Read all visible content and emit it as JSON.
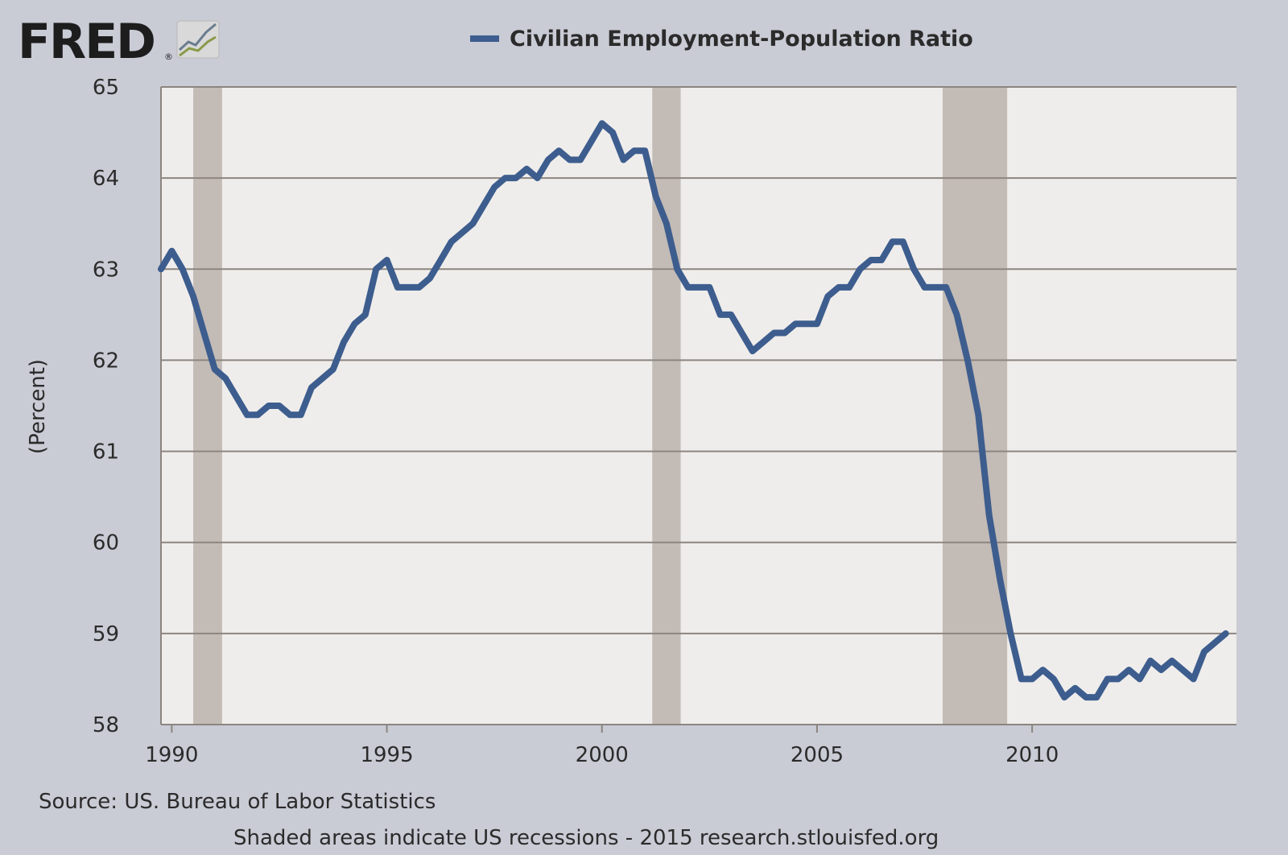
{
  "logo": {
    "text": "FRED",
    "registered": "®"
  },
  "colors": {
    "background": "#c9cbd5",
    "plot_background": "#efedeb",
    "recession_shade": "#c3bbb6",
    "series_line": "#3d5d8e",
    "gridline": "#8c8580"
  },
  "chart_data": {
    "type": "line",
    "title": "",
    "xlabel": "",
    "ylabel": "(Percent)",
    "xlim": [
      1989.75,
      2014.75
    ],
    "ylim": [
      58,
      65
    ],
    "y_ticks": [
      58,
      59,
      60,
      61,
      62,
      63,
      64,
      65
    ],
    "x_ticks": [
      1990,
      1995,
      2000,
      2005,
      2010
    ],
    "grid": true,
    "legend_position": "top-center",
    "recession_shading": [
      [
        1990.5,
        1991.17
      ],
      [
        2001.17,
        2001.83
      ],
      [
        2007.92,
        2009.42
      ]
    ],
    "series": [
      {
        "name": "Civilian Employment-Population Ratio",
        "x": [
          1989.75,
          1990.0,
          1990.25,
          1990.5,
          1990.75,
          1991.0,
          1991.25,
          1991.5,
          1991.75,
          1992.0,
          1992.25,
          1992.5,
          1992.75,
          1993.0,
          1993.25,
          1993.5,
          1993.75,
          1994.0,
          1994.25,
          1994.5,
          1994.75,
          1995.0,
          1995.25,
          1995.5,
          1995.75,
          1996.0,
          1996.25,
          1996.5,
          1996.75,
          1997.0,
          1997.25,
          1997.5,
          1997.75,
          1998.0,
          1998.25,
          1998.5,
          1998.75,
          1999.0,
          1999.25,
          1999.5,
          1999.75,
          2000.0,
          2000.25,
          2000.5,
          2000.75,
          2001.0,
          2001.25,
          2001.5,
          2001.75,
          2002.0,
          2002.25,
          2002.5,
          2002.75,
          2003.0,
          2003.25,
          2003.5,
          2003.75,
          2004.0,
          2004.25,
          2004.5,
          2004.75,
          2005.0,
          2005.25,
          2005.5,
          2005.75,
          2006.0,
          2006.25,
          2006.5,
          2006.75,
          2007.0,
          2007.25,
          2007.5,
          2007.75,
          2008.0,
          2008.25,
          2008.5,
          2008.75,
          2009.0,
          2009.25,
          2009.5,
          2009.75,
          2010.0,
          2010.25,
          2010.5,
          2010.75,
          2011.0,
          2011.25,
          2011.5,
          2011.75,
          2012.0,
          2012.25,
          2012.5,
          2012.75,
          2013.0,
          2013.25,
          2013.5,
          2013.75,
          2014.0,
          2014.25,
          2014.5
        ],
        "y": [
          63.0,
          63.2,
          63.0,
          62.7,
          62.3,
          61.9,
          61.8,
          61.6,
          61.4,
          61.4,
          61.5,
          61.5,
          61.4,
          61.4,
          61.7,
          61.8,
          61.9,
          62.2,
          62.4,
          62.5,
          63.0,
          63.1,
          62.8,
          62.8,
          62.8,
          62.9,
          63.1,
          63.3,
          63.4,
          63.5,
          63.7,
          63.9,
          64.0,
          64.0,
          64.1,
          64.0,
          64.2,
          64.3,
          64.2,
          64.2,
          64.4,
          64.6,
          64.5,
          64.2,
          64.3,
          64.3,
          63.8,
          63.5,
          63.0,
          62.8,
          62.8,
          62.8,
          62.5,
          62.5,
          62.3,
          62.1,
          62.2,
          62.3,
          62.3,
          62.4,
          62.4,
          62.4,
          62.7,
          62.8,
          62.8,
          63.0,
          63.1,
          63.1,
          63.3,
          63.3,
          63.0,
          62.8,
          62.8,
          62.8,
          62.5,
          62.0,
          61.4,
          60.3,
          59.6,
          59.0,
          58.5,
          58.5,
          58.6,
          58.5,
          58.3,
          58.4,
          58.3,
          58.3,
          58.5,
          58.5,
          58.6,
          58.5,
          58.7,
          58.6,
          58.7,
          58.6,
          58.5,
          58.8,
          58.9,
          59.0
        ]
      }
    ]
  },
  "footer": {
    "source": "Source: US. Bureau of Labor Statistics",
    "note": "Shaded areas indicate US recessions - 2015 research.stlouisfed.org"
  }
}
